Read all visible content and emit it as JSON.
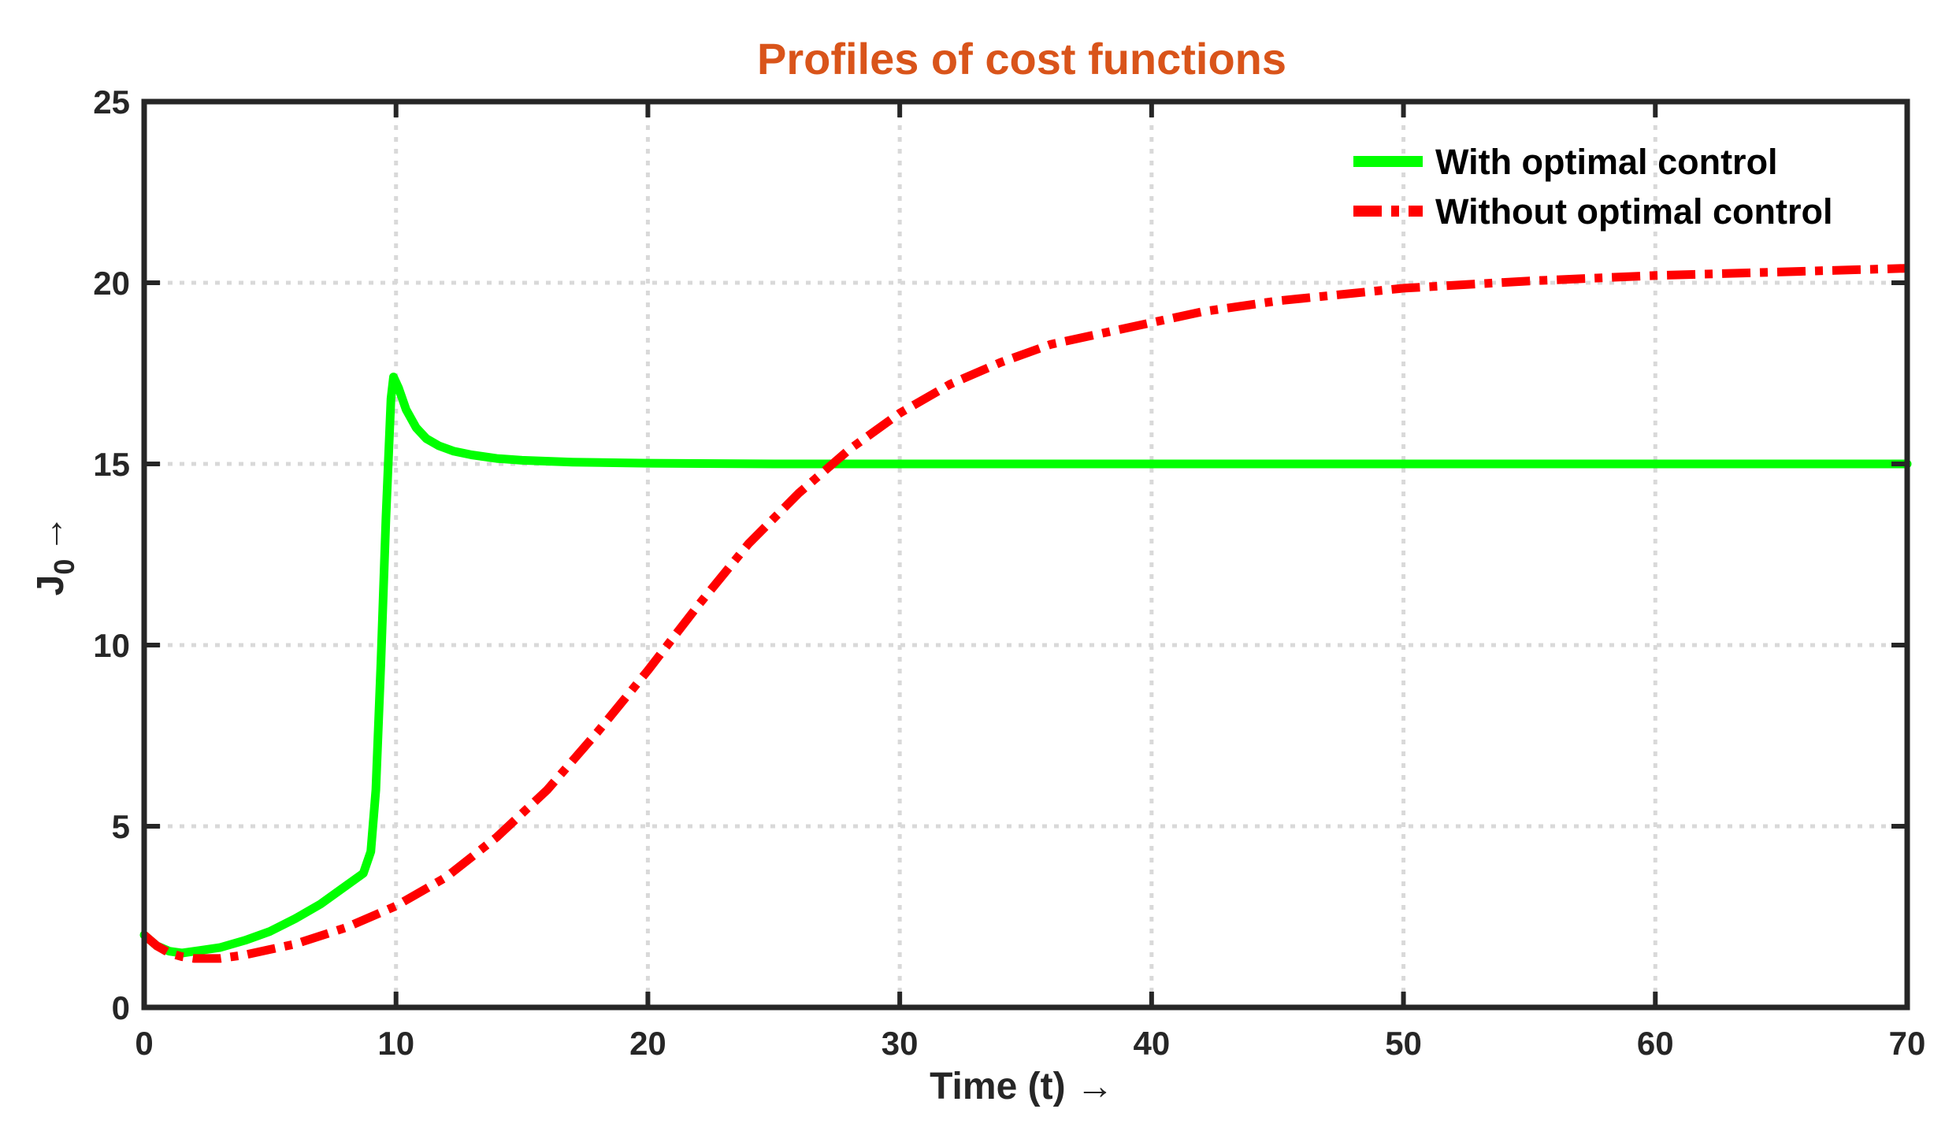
{
  "chart_data": {
    "type": "line",
    "title": "Profiles of cost functions",
    "xlabel": "Time (t) →",
    "ylabel_main": "J",
    "ylabel_sub": "0",
    "ylabel_arrow": "→",
    "xlim": [
      0,
      70
    ],
    "ylim": [
      0,
      25
    ],
    "xticks": [
      0,
      10,
      20,
      30,
      40,
      50,
      60,
      70
    ],
    "yticks": [
      0,
      5,
      10,
      15,
      20,
      25
    ],
    "xtick_labels": [
      "0",
      "10",
      "20",
      "30",
      "40",
      "50",
      "60",
      "70"
    ],
    "ytick_labels": [
      "0",
      "5",
      "10",
      "15",
      "20",
      "25"
    ],
    "grid": true,
    "legend_position": "top-right",
    "colors": {
      "title": "#d9541a",
      "axis": "#262626",
      "grid": "#d9d9d9"
    },
    "series": [
      {
        "name": "With optimal control",
        "color": "#00ff00",
        "style": "solid",
        "x": [
          0,
          0.5,
          1,
          1.5,
          2,
          3,
          4,
          5,
          6,
          7,
          8,
          8.7,
          9.0,
          9.2,
          9.4,
          9.6,
          9.8,
          9.9,
          10.1,
          10.4,
          10.8,
          11.2,
          11.7,
          12.3,
          13,
          14,
          15,
          17,
          20,
          25,
          30,
          40,
          50,
          60,
          70
        ],
        "y": [
          2.0,
          1.7,
          1.55,
          1.5,
          1.55,
          1.65,
          1.85,
          2.1,
          2.45,
          2.85,
          3.35,
          3.7,
          4.3,
          6.0,
          9.5,
          13.5,
          16.8,
          17.4,
          17.1,
          16.5,
          16.0,
          15.7,
          15.5,
          15.35,
          15.25,
          15.15,
          15.1,
          15.05,
          15.02,
          15.0,
          15.0,
          15.0,
          15.0,
          15.0,
          15.0
        ]
      },
      {
        "name": "Without optimal control",
        "color": "#ff0000",
        "style": "dashdot",
        "x": [
          0,
          0.5,
          1,
          1.5,
          2,
          3,
          4,
          5,
          6,
          8,
          10,
          12,
          14,
          16,
          18,
          20,
          22,
          24,
          26,
          28,
          30,
          32,
          34,
          36,
          38,
          40,
          42,
          45,
          50,
          55,
          60,
          65,
          70
        ],
        "y": [
          2.0,
          1.7,
          1.5,
          1.4,
          1.35,
          1.35,
          1.45,
          1.6,
          1.75,
          2.2,
          2.8,
          3.6,
          4.7,
          6.0,
          7.6,
          9.3,
          11.1,
          12.8,
          14.2,
          15.4,
          16.4,
          17.2,
          17.8,
          18.3,
          18.6,
          18.9,
          19.2,
          19.5,
          19.85,
          20.05,
          20.2,
          20.3,
          20.4
        ]
      }
    ]
  }
}
